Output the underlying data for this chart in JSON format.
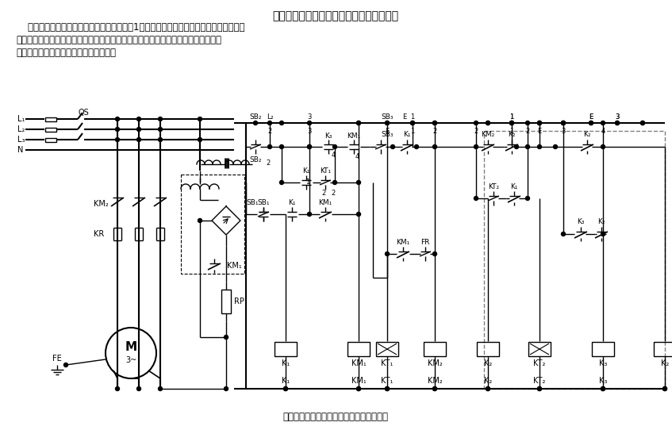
{
  "title_top": "单向运转的全波整流点动能耗制动控制电路",
  "text_line1": "    在具有能耗制动的电动机控制电路中，增加1只时间继电器及两只中间继电器，使电动机",
  "text_line2": "不仅在正常停车时有制动作用，而且在点动过程中也有较好的制动效果，其电路如图",
  "text_line3": "所示，图中虚线框内的电路为增加部分。",
  "title_bottom": "单向运转的全波整流点动能耗制动控制电路",
  "bg_color": "#ffffff",
  "figsize": [
    8.47,
    5.42
  ],
  "dpi": 100
}
